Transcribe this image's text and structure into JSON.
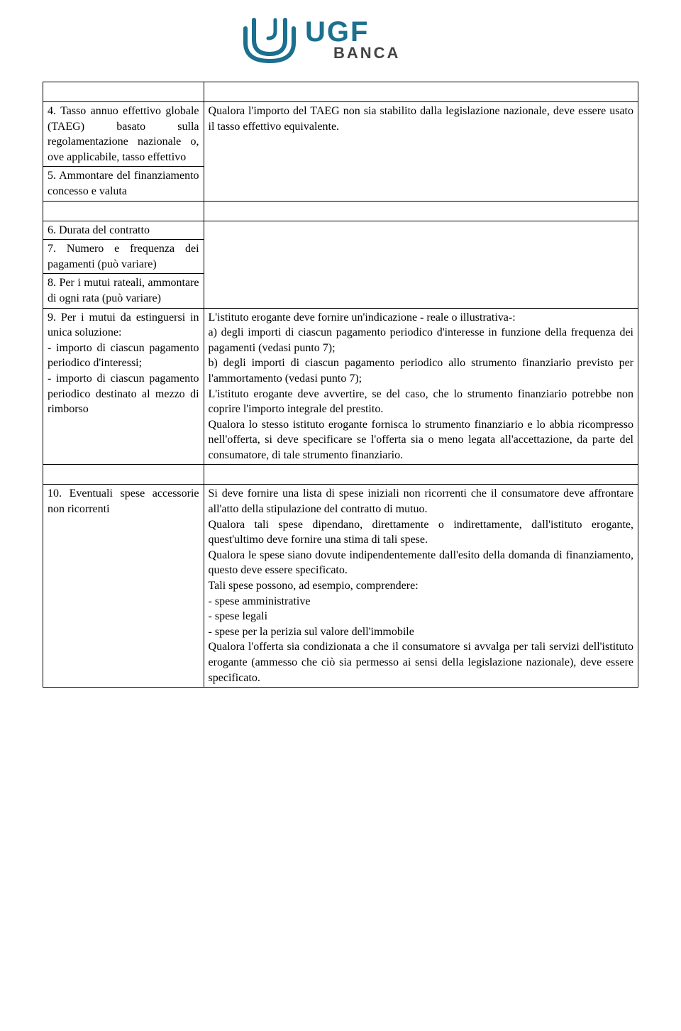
{
  "logo": {
    "text_line1": "UGF",
    "text_line2": "BANCA",
    "primary_color": "#1b6f8f",
    "secondary_color": "#444444"
  },
  "rows": {
    "r4_left": "4. Tasso annuo effettivo globale (TAEG) basato sulla regolamentazione nazionale o, ove applicabile, tasso effettivo",
    "r4_right": "Qualora l'importo del TAEG non sia stabilito dalla legislazione nazionale, deve essere usato il tasso effettivo equivalente.",
    "r5_left": "5. Ammontare del finanziamento concesso e valuta",
    "r6_left": "6. Durata del contratto",
    "r7_left": "7. Numero e frequenza dei pagamenti (può variare)",
    "r8_left": "8. Per i mutui rateali, ammontare di ogni rata (può variare)",
    "r9_left": "9. Per i mutui da estinguersi in unica soluzione:\n- importo di ciascun pagamento periodico d'interessi;\n- importo di ciascun pagamento periodico destinato al mezzo di rimborso",
    "r9_right": "L'istituto erogante deve fornire un'indicazione - reale o illustrativa-:\na) degli importi di ciascun pagamento periodico d'interesse in funzione della frequenza dei pagamenti (vedasi punto 7);\nb) degli importi di ciascun pagamento periodico allo strumento finanziario previsto per l'ammortamento (vedasi punto 7);\nL'istituto erogante deve avvertire, se del caso, che lo strumento finanziario potrebbe non coprire l'importo integrale del prestito.\nQualora lo stesso istituto erogante fornisca lo strumento finanziario e lo abbia ricompresso nell'offerta, si deve specificare se l'offerta sia o meno legata all'accettazione, da parte del consumatore, di tale strumento finanziario.",
    "r10_left": "10. Eventuali spese accessorie non ricorrenti",
    "r10_right": "Si deve fornire una lista di spese iniziali non ricorrenti che il consumatore deve affrontare all'atto della stipulazione del contratto di mutuo.\nQualora tali spese dipendano, direttamente o indirettamente, dall'istituto erogante, quest'ultimo deve fornire una stima di tali spese.\nQualora le spese siano dovute indipendentemente dall'esito della domanda di finanziamento, questo deve essere specificato.\nTali spese possono, ad esempio, comprendere:\n- spese amministrative\n- spese legali\n- spese per la perizia sul valore dell'immobile\nQualora l'offerta sia condizionata a che il consumatore si avvalga per tali servizi dell'istituto erogante (ammesso che ciò sia permesso ai sensi della legislazione nazionale), deve essere specificato."
  }
}
